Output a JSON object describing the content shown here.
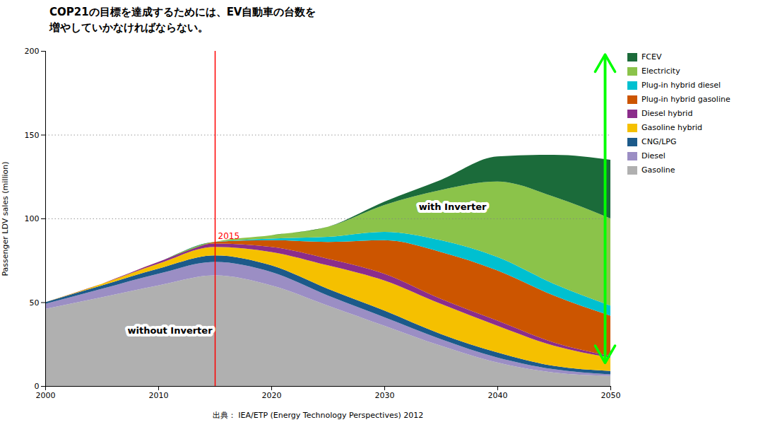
{
  "chart_data": {
    "type": "area",
    "stacked": true,
    "title": "COP21の目標を達成するためには、EV自動車の台数を\n増やしていかなければならない。",
    "y_label": "Passenger LDV sales (million)",
    "source": "出典：  IEA/ETP (Energy Technology Perspectives) 2012",
    "x": [
      2000,
      2005,
      2010,
      2015,
      2020,
      2025,
      2030,
      2035,
      2040,
      2045,
      2050
    ],
    "xlim": [
      2000,
      2050
    ],
    "xticks": [
      2000,
      2010,
      2020,
      2030,
      2040,
      2050
    ],
    "ylim": [
      0,
      200
    ],
    "yticks": [
      0,
      50,
      100,
      150,
      200
    ],
    "legend": "right",
    "series": [
      {
        "name": "Gasoline",
        "color": "#b0b0b0",
        "values": [
          46,
          53,
          60,
          66,
          60,
          48,
          36,
          24,
          14,
          8,
          6
        ]
      },
      {
        "name": "Diesel",
        "color": "#9b8ec4",
        "values": [
          3,
          5,
          7,
          8,
          8,
          6,
          5,
          4,
          3,
          2,
          1
        ]
      },
      {
        "name": "CNG/LPG",
        "color": "#1c5a8a",
        "values": [
          1,
          2,
          3,
          4,
          4,
          4,
          4,
          3,
          3,
          2,
          2
        ]
      },
      {
        "name": "Gasoline hybrid",
        "color": "#f5c000",
        "values": [
          0,
          1,
          3,
          5,
          8,
          14,
          18,
          18,
          16,
          12,
          8
        ]
      },
      {
        "name": "Diesel hybrid",
        "color": "#8b2d8b",
        "values": [
          0,
          0,
          1,
          2,
          3,
          4,
          4,
          3,
          3,
          2,
          1
        ]
      },
      {
        "name": "Plug-in hybrid gasoline",
        "color": "#cc5500",
        "values": [
          0,
          0,
          0,
          1,
          4,
          10,
          20,
          28,
          30,
          28,
          24
        ]
      },
      {
        "name": "Plug-in hybrid diesel",
        "color": "#00c0d0",
        "values": [
          0,
          0,
          0,
          0,
          1,
          3,
          5,
          7,
          8,
          7,
          6
        ]
      },
      {
        "name": "Electricity",
        "color": "#8bc34a",
        "values": [
          0,
          0,
          0,
          0,
          2,
          6,
          16,
          30,
          45,
          52,
          52
        ]
      },
      {
        "name": "FCEV",
        "color": "#1b6b3a",
        "values": [
          0,
          0,
          0,
          0,
          0,
          0,
          2,
          6,
          15,
          25,
          35
        ]
      }
    ],
    "hlines": [
      100,
      150
    ],
    "vline": {
      "x": 2015,
      "color": "#ff0000",
      "label": "2015",
      "label_y": 88
    },
    "annotations": [
      {
        "text": "without Inverter",
        "x": 2011,
        "y": 33
      },
      {
        "text": "with Inverter",
        "x": 2036,
        "y": 107
      }
    ],
    "arrow": {
      "x": 2049.5,
      "y1": 14,
      "y2": 198,
      "color": "#00ff00"
    }
  }
}
